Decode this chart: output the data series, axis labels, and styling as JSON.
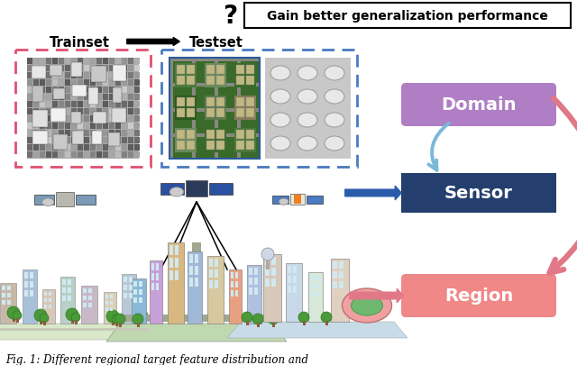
{
  "title_text": "Gain better generalization performance",
  "question_mark": "?",
  "trainset_label": "Trainset",
  "testset_label": "Testset",
  "domain_label": "Domain",
  "sensor_label": "Sensor",
  "region_label": "Region",
  "caption": "Fig. 1: Different regional target feature distribution and",
  "domain_color": "#b07ec4",
  "sensor_color": "#243f6e",
  "region_color": "#f08888",
  "arrow_blue_solid": "#2a5aaa",
  "arrow_blue_curved": "#7ab8d8",
  "arrow_pink": "#e07888",
  "train_border": "#e05070",
  "test_border": "#4a7abf",
  "bg_color": "#ffffff",
  "fig_width": 6.4,
  "fig_height": 4.06,
  "dpi": 100
}
